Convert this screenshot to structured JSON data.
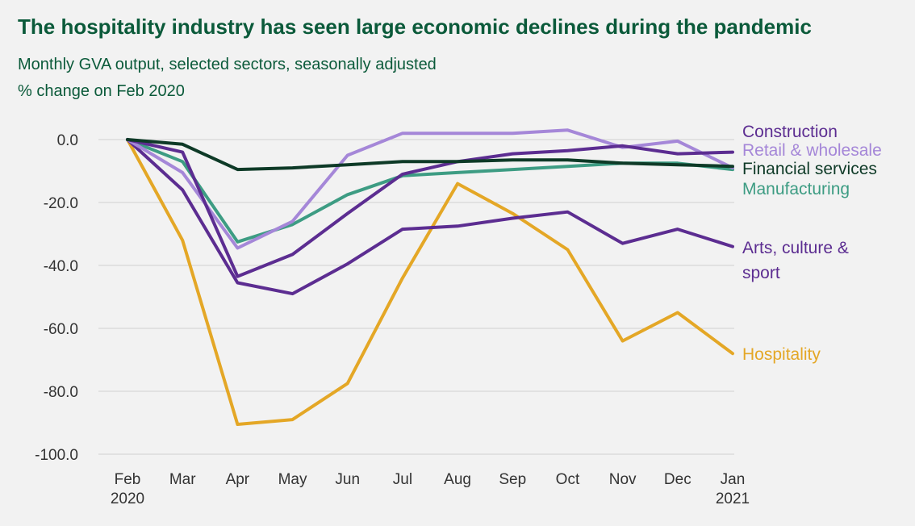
{
  "chart_data": {
    "type": "line",
    "title": "The hospitality industry has seen large economic declines during the pandemic",
    "subtitle": "Monthly GVA output, selected sectors, seasonally adjusted",
    "ylabel": "% change on Feb 2020",
    "xlabel": "",
    "categories": [
      "Feb\n2020",
      "Mar",
      "Apr",
      "May",
      "Jun",
      "Jul",
      "Aug",
      "Sep",
      "Oct",
      "Nov",
      "Dec",
      "Jan\n2021"
    ],
    "ylim": [
      -100,
      0
    ],
    "yticks": [
      "0.0",
      "-20.0",
      "-40.0",
      "-60.0",
      "-80.0",
      "-100.0"
    ],
    "grid": true,
    "series": [
      {
        "name": "Hospitality",
        "color": "#e4a726",
        "values": [
          0,
          -32,
          -90.5,
          -89,
          -77.5,
          -44,
          -14,
          -23.5,
          -35,
          -64,
          -55,
          -68
        ]
      },
      {
        "name": "Arts, culture & sport",
        "color": "#5c2d91",
        "values": [
          0,
          -16,
          -45.5,
          -49,
          -39.5,
          -28.5,
          -27.5,
          -25,
          -23,
          -33,
          -28.5,
          -34
        ]
      },
      {
        "name": "Manufacturing",
        "color": "#3d9c83",
        "values": [
          0,
          -7,
          -32.5,
          -27,
          -17.5,
          -11.5,
          -10.5,
          -9.5,
          -8.5,
          -7.5,
          -7.5,
          -9.5
        ]
      },
      {
        "name": "Retail & wholesale",
        "color": "#a587d8",
        "values": [
          0,
          -10.5,
          -34.5,
          -26,
          -5,
          2,
          2,
          2,
          3,
          -2.5,
          -0.5,
          -9
        ]
      },
      {
        "name": "Construction",
        "color": "#5c2d91",
        "values": [
          0,
          -4,
          -43.5,
          -36.5,
          -23.5,
          -11,
          -7,
          -4.5,
          -3.5,
          -2,
          -4.5,
          -4
        ]
      },
      {
        "name": "Financial services",
        "color": "#0e3a27",
        "values": [
          0,
          -1.5,
          -9.5,
          -9,
          -8,
          -7,
          -7,
          -6.5,
          -6.5,
          -7.5,
          -8,
          -8.5
        ]
      }
    ]
  },
  "labels": {
    "construction": "Construction",
    "retail": "Retail & wholesale",
    "financial": "Financial services",
    "manufacturing": "Manufacturing",
    "arts_line1": "Arts, culture &",
    "arts_line2": "sport",
    "hospitality": "Hospitality"
  },
  "colors": {
    "title": "#0b5a3a",
    "grid": "#d0d0d0"
  }
}
